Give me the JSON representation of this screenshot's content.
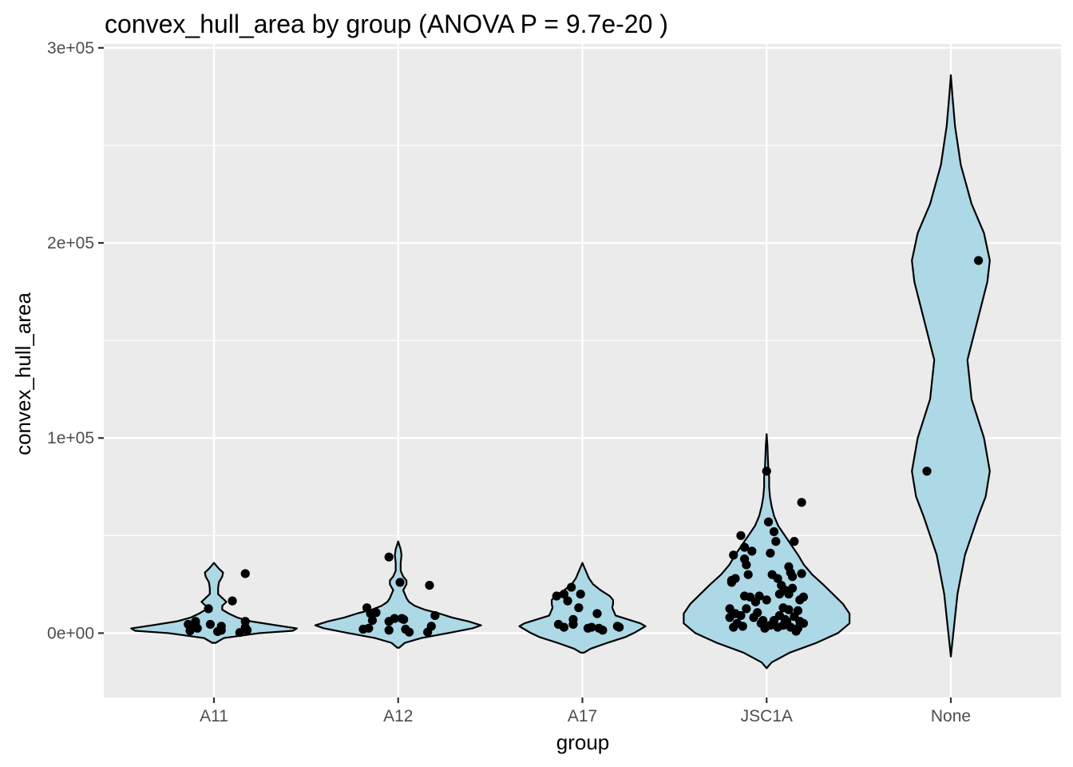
{
  "chart_data": {
    "type": "violin",
    "title": "convex_hull_area by group (ANOVA P = 9.7e-20 )",
    "xlabel": "group",
    "ylabel": "convex_hull_area",
    "categories": [
      "A11",
      "A12",
      "A17",
      "JSC1A",
      "None"
    ],
    "ylim": [
      -33000,
      302000
    ],
    "yticks": [
      {
        "value": 0,
        "label": "0e+00"
      },
      {
        "value": 100000,
        "label": "1e+05"
      },
      {
        "value": 200000,
        "label": "2e+05"
      },
      {
        "value": 300000,
        "label": "3e+05"
      }
    ],
    "grid": true,
    "legend": "none",
    "colors": {
      "panel": "#ebebeb",
      "grid": "#ffffff",
      "violin_fill": "#add8e6",
      "violin_stroke": "#000000",
      "point": "#000000"
    },
    "groups": [
      {
        "name": "A11",
        "violin": {
          "ymin": -5000,
          "ymax": 36000,
          "density": [
            [
              -5000,
              0.02
            ],
            [
              -2500,
              0.12
            ],
            [
              0,
              0.55
            ],
            [
              1200,
              0.95
            ],
            [
              2400,
              1.0
            ],
            [
              4000,
              0.75
            ],
            [
              6000,
              0.45
            ],
            [
              8000,
              0.28
            ],
            [
              10000,
              0.18
            ],
            [
              12000,
              0.1
            ],
            [
              14000,
              0.1
            ],
            [
              16000,
              0.15
            ],
            [
              18000,
              0.1
            ],
            [
              20000,
              0.05
            ],
            [
              23000,
              0.05
            ],
            [
              26000,
              0.06
            ],
            [
              29000,
              0.1
            ],
            [
              31000,
              0.11
            ],
            [
              33000,
              0.06
            ],
            [
              34500,
              0.03
            ],
            [
              36000,
              0.0
            ]
          ]
        },
        "points": [
          {
            "dx": -0.14,
            "y": 4500
          },
          {
            "dx": -0.13,
            "y": 1200
          },
          {
            "dx": -0.11,
            "y": 3000
          },
          {
            "dx": -0.1,
            "y": 6000
          },
          {
            "dx": -0.1,
            "y": 5500
          },
          {
            "dx": -0.09,
            "y": 2500
          },
          {
            "dx": -0.03,
            "y": 12500
          },
          {
            "dx": -0.02,
            "y": 4500
          },
          {
            "dx": 0.02,
            "y": 800
          },
          {
            "dx": 0.04,
            "y": 1500
          },
          {
            "dx": 0.04,
            "y": 3500
          },
          {
            "dx": 0.1,
            "y": 16500
          },
          {
            "dx": 0.14,
            "y": 300
          },
          {
            "dx": 0.17,
            "y": 6000
          },
          {
            "dx": 0.17,
            "y": 3000
          },
          {
            "dx": 0.18,
            "y": 1500
          },
          {
            "dx": 0.17,
            "y": 30500
          }
        ]
      },
      {
        "name": "A12",
        "violin": {
          "ymin": -7500,
          "ymax": 47000,
          "density": [
            [
              -7500,
              0.01
            ],
            [
              -5000,
              0.08
            ],
            [
              -2500,
              0.28
            ],
            [
              0,
              0.6
            ],
            [
              2500,
              0.9
            ],
            [
              4000,
              1.0
            ],
            [
              6000,
              0.85
            ],
            [
              8000,
              0.65
            ],
            [
              10000,
              0.5
            ],
            [
              12000,
              0.32
            ],
            [
              14000,
              0.2
            ],
            [
              16000,
              0.13
            ],
            [
              18000,
              0.1
            ],
            [
              20000,
              0.08
            ],
            [
              22000,
              0.06
            ],
            [
              25000,
              0.1
            ],
            [
              27000,
              0.1
            ],
            [
              29000,
              0.06
            ],
            [
              32000,
              0.03
            ],
            [
              36000,
              0.03
            ],
            [
              40000,
              0.04
            ],
            [
              43000,
              0.03
            ],
            [
              45000,
              0.015
            ],
            [
              47000,
              0.0
            ]
          ]
        },
        "points": [
          {
            "dx": -0.19,
            "y": 2000
          },
          {
            "dx": -0.16,
            "y": 2500
          },
          {
            "dx": -0.17,
            "y": 13000
          },
          {
            "dx": -0.15,
            "y": 10000
          },
          {
            "dx": -0.14,
            "y": 6500
          },
          {
            "dx": -0.12,
            "y": 10500
          },
          {
            "dx": -0.05,
            "y": 39000
          },
          {
            "dx": -0.05,
            "y": 6000
          },
          {
            "dx": -0.05,
            "y": 1500
          },
          {
            "dx": -0.02,
            "y": 7500
          },
          {
            "dx": 0.01,
            "y": 26000
          },
          {
            "dx": 0.02,
            "y": 7500
          },
          {
            "dx": 0.03,
            "y": 7000
          },
          {
            "dx": 0.04,
            "y": 2000
          },
          {
            "dx": 0.06,
            "y": 500
          },
          {
            "dx": 0.17,
            "y": 24500
          },
          {
            "dx": 0.16,
            "y": 500
          },
          {
            "dx": 0.18,
            "y": 3500
          },
          {
            "dx": 0.2,
            "y": 9000
          }
        ]
      },
      {
        "name": "A17",
        "violin": {
          "ymin": -10000,
          "ymax": 36000,
          "density": [
            [
              -10000,
              0.02
            ],
            [
              -8000,
              0.1
            ],
            [
              -5000,
              0.3
            ],
            [
              -2000,
              0.52
            ],
            [
              0,
              0.62
            ],
            [
              2000,
              0.7
            ],
            [
              3500,
              0.76
            ],
            [
              5000,
              0.7
            ],
            [
              7000,
              0.55
            ],
            [
              9000,
              0.4
            ],
            [
              11000,
              0.38
            ],
            [
              13000,
              0.36
            ],
            [
              15000,
              0.37
            ],
            [
              17000,
              0.37
            ],
            [
              19000,
              0.33
            ],
            [
              22000,
              0.22
            ],
            [
              25000,
              0.13
            ],
            [
              28000,
              0.08
            ],
            [
              31000,
              0.05
            ],
            [
              34000,
              0.02
            ],
            [
              36000,
              0.0
            ]
          ]
        },
        "points": [
          {
            "dx": -0.14,
            "y": 19000
          },
          {
            "dx": -0.13,
            "y": 4500
          },
          {
            "dx": -0.1,
            "y": 20000
          },
          {
            "dx": -0.1,
            "y": 3000
          },
          {
            "dx": -0.08,
            "y": 16500
          },
          {
            "dx": -0.06,
            "y": 23500
          },
          {
            "dx": -0.05,
            "y": 7000
          },
          {
            "dx": -0.05,
            "y": 4500
          },
          {
            "dx": -0.02,
            "y": 13000
          },
          {
            "dx": -0.01,
            "y": 20000
          },
          {
            "dx": 0.03,
            "y": 2500
          },
          {
            "dx": 0.05,
            "y": 3000
          },
          {
            "dx": 0.08,
            "y": 10000
          },
          {
            "dx": 0.09,
            "y": 2500
          },
          {
            "dx": 0.11,
            "y": 1500
          },
          {
            "dx": 0.19,
            "y": 3500
          },
          {
            "dx": 0.2,
            "y": 3000
          }
        ]
      },
      {
        "name": "JSC1A",
        "violin": {
          "ymin": -18000,
          "ymax": 102000,
          "density": [
            [
              -18000,
              0.0
            ],
            [
              -15000,
              0.06
            ],
            [
              -10000,
              0.28
            ],
            [
              -5000,
              0.6
            ],
            [
              0,
              0.86
            ],
            [
              5000,
              1.0
            ],
            [
              10000,
              1.0
            ],
            [
              15000,
              0.92
            ],
            [
              20000,
              0.8
            ],
            [
              25000,
              0.68
            ],
            [
              30000,
              0.55
            ],
            [
              35000,
              0.45
            ],
            [
              40000,
              0.38
            ],
            [
              45000,
              0.3
            ],
            [
              50000,
              0.22
            ],
            [
              55000,
              0.14
            ],
            [
              60000,
              0.09
            ],
            [
              65000,
              0.06
            ],
            [
              70000,
              0.04
            ],
            [
              75000,
              0.03
            ],
            [
              80000,
              0.03
            ],
            [
              85000,
              0.02
            ],
            [
              90000,
              0.015
            ],
            [
              96000,
              0.01
            ],
            [
              102000,
              0.0
            ]
          ]
        },
        "points": [
          {
            "dx": -0.2,
            "y": 12500
          },
          {
            "dx": -0.2,
            "y": 8000
          },
          {
            "dx": -0.19,
            "y": 27000
          },
          {
            "dx": -0.19,
            "y": 26000
          },
          {
            "dx": -0.18,
            "y": 40000
          },
          {
            "dx": -0.18,
            "y": 3000
          },
          {
            "dx": -0.17,
            "y": 28000
          },
          {
            "dx": -0.17,
            "y": 10000
          },
          {
            "dx": -0.16,
            "y": 5000
          },
          {
            "dx": -0.14,
            "y": 50000
          },
          {
            "dx": -0.14,
            "y": 9000
          },
          {
            "dx": -0.13,
            "y": 3500
          },
          {
            "dx": -0.12,
            "y": 44000
          },
          {
            "dx": -0.12,
            "y": 38000
          },
          {
            "dx": -0.12,
            "y": 19000
          },
          {
            "dx": -0.11,
            "y": 12500
          },
          {
            "dx": -0.11,
            "y": 35000
          },
          {
            "dx": -0.1,
            "y": 30000
          },
          {
            "dx": -0.09,
            "y": 18500
          },
          {
            "dx": -0.08,
            "y": 42000
          },
          {
            "dx": -0.07,
            "y": 8000
          },
          {
            "dx": -0.06,
            "y": 16000
          },
          {
            "dx": -0.05,
            "y": 10500
          },
          {
            "dx": -0.04,
            "y": 19000
          },
          {
            "dx": -0.03,
            "y": 5000
          },
          {
            "dx": -0.02,
            "y": 6500
          },
          {
            "dx": -0.01,
            "y": 2500
          },
          {
            "dx": 0.0,
            "y": 83000
          },
          {
            "dx": 0.0,
            "y": 17000
          },
          {
            "dx": 0.01,
            "y": 57000
          },
          {
            "dx": 0.02,
            "y": 4000
          },
          {
            "dx": 0.02,
            "y": 41000
          },
          {
            "dx": 0.03,
            "y": 30000
          },
          {
            "dx": 0.04,
            "y": 52000
          },
          {
            "dx": 0.04,
            "y": 6500
          },
          {
            "dx": 0.05,
            "y": 47000
          },
          {
            "dx": 0.06,
            "y": 28000
          },
          {
            "dx": 0.06,
            "y": 3000
          },
          {
            "dx": 0.07,
            "y": 20000
          },
          {
            "dx": 0.07,
            "y": 9000
          },
          {
            "dx": 0.08,
            "y": 24500
          },
          {
            "dx": 0.09,
            "y": 13000
          },
          {
            "dx": 0.09,
            "y": 4000
          },
          {
            "dx": 0.1,
            "y": 22000
          },
          {
            "dx": 0.1,
            "y": 7000
          },
          {
            "dx": 0.11,
            "y": 6000
          },
          {
            "dx": 0.12,
            "y": 34000
          },
          {
            "dx": 0.12,
            "y": 20000
          },
          {
            "dx": 0.12,
            "y": 12000
          },
          {
            "dx": 0.13,
            "y": 31000
          },
          {
            "dx": 0.13,
            "y": 3000
          },
          {
            "dx": 0.14,
            "y": 29000
          },
          {
            "dx": 0.14,
            "y": 23000
          },
          {
            "dx": 0.15,
            "y": 47000
          },
          {
            "dx": 0.15,
            "y": 8500
          },
          {
            "dx": 0.16,
            "y": 1000
          },
          {
            "dx": 0.17,
            "y": 11500
          },
          {
            "dx": 0.17,
            "y": 2500
          },
          {
            "dx": 0.18,
            "y": 17000
          },
          {
            "dx": 0.18,
            "y": 6000
          },
          {
            "dx": 0.19,
            "y": 30500
          },
          {
            "dx": 0.19,
            "y": 67000
          },
          {
            "dx": 0.2,
            "y": 18500
          },
          {
            "dx": 0.2,
            "y": 5000
          }
        ]
      },
      {
        "name": "None",
        "violin": {
          "ymin": -12000,
          "ymax": 286000,
          "density": [
            [
              -12000,
              0.0
            ],
            [
              0,
              0.03
            ],
            [
              20000,
              0.08
            ],
            [
              40000,
              0.17
            ],
            [
              60000,
              0.33
            ],
            [
              70000,
              0.42
            ],
            [
              83000,
              0.47
            ],
            [
              100000,
              0.4
            ],
            [
              120000,
              0.25
            ],
            [
              140000,
              0.2
            ],
            [
              160000,
              0.32
            ],
            [
              180000,
              0.44
            ],
            [
              191000,
              0.47
            ],
            [
              205000,
              0.4
            ],
            [
              220000,
              0.25
            ],
            [
              240000,
              0.12
            ],
            [
              260000,
              0.05
            ],
            [
              275000,
              0.02
            ],
            [
              286000,
              0.0
            ]
          ]
        },
        "points": [
          {
            "dx": -0.13,
            "y": 83000
          },
          {
            "dx": 0.15,
            "y": 191000
          }
        ]
      }
    ]
  }
}
